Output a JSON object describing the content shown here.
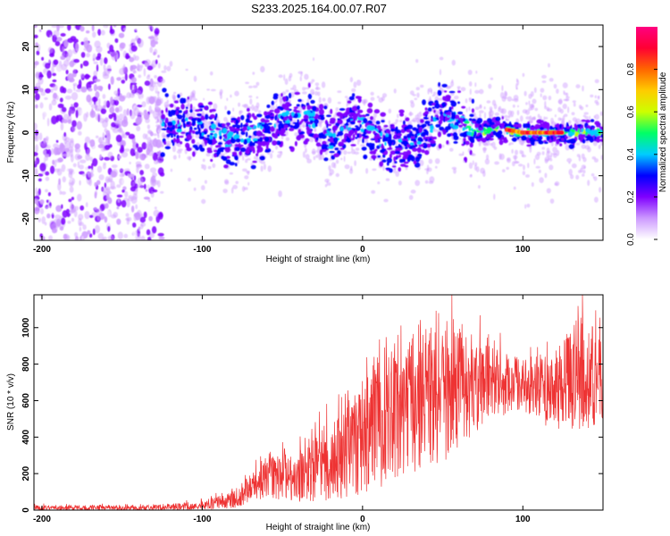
{
  "title": "S233.2025.164.00.07.R07",
  "chart_data": [
    {
      "type": "heatmap",
      "title": "",
      "xlabel": "Height of straight line (km)",
      "ylabel": "Frequency (Hz)",
      "xlim": [
        -205,
        150
      ],
      "ylim": [
        -25,
        25
      ],
      "xticks": [
        -200,
        -100,
        0,
        100
      ],
      "xtick_labels": [
        "-200",
        "-100",
        "0",
        "100"
      ],
      "yticks": [
        -20,
        -10,
        0,
        10,
        20
      ],
      "ytick_labels": [
        "-20",
        "-10",
        "0",
        "10",
        "20"
      ],
      "colorbar": {
        "label": "Normalized spectral amplitude",
        "range": [
          0,
          1
        ],
        "ticks": [
          0.0,
          0.2,
          0.4,
          0.6,
          0.8
        ],
        "tick_labels": [
          "0.0",
          "0.2",
          "0.4",
          "0.6",
          "0.8"
        ],
        "colormap": [
          "#ffffff",
          "#cc99ff",
          "#7f00ff",
          "#0000ff",
          "#00ccff",
          "#00ff66",
          "#ccff00",
          "#ffcc00",
          "#ff6600",
          "#ff0033",
          "#ff0080"
        ]
      },
      "features": {
        "noise_region_x": [
          -205,
          -125
        ],
        "signal_start_x": -125,
        "signal_center_track": [
          {
            "x": -125,
            "y": 3
          },
          {
            "x": -100,
            "y": 1
          },
          {
            "x": -80,
            "y": -2
          },
          {
            "x": -60,
            "y": 1
          },
          {
            "x": -45,
            "y": 4
          },
          {
            "x": -30,
            "y": 3
          },
          {
            "x": -20,
            "y": -2
          },
          {
            "x": -5,
            "y": 3
          },
          {
            "x": 10,
            "y": -1
          },
          {
            "x": 25,
            "y": -3
          },
          {
            "x": 40,
            "y": 0
          },
          {
            "x": 50,
            "y": 5
          },
          {
            "x": 60,
            "y": 2
          },
          {
            "x": 75,
            "y": 0
          },
          {
            "x": 85,
            "y": 1
          },
          {
            "x": 100,
            "y": 0
          },
          {
            "x": 120,
            "y": 0
          },
          {
            "x": 150,
            "y": 0
          }
        ],
        "peak_region_x": [
          90,
          125
        ],
        "peak_amplitude": 0.95
      }
    },
    {
      "type": "line",
      "title": "",
      "xlabel": "Height of straight line (km)",
      "ylabel": "SNR (10 * v/v)",
      "xlim": [
        -205,
        150
      ],
      "ylim": [
        0,
        1180
      ],
      "xticks": [
        -200,
        -100,
        0,
        100
      ],
      "xtick_labels": [
        "-200",
        "-100",
        "0",
        "100"
      ],
      "yticks": [
        0,
        200,
        400,
        600,
        800,
        1000
      ],
      "ytick_labels": [
        "0",
        "200",
        "400",
        "600",
        "800",
        "1000"
      ],
      "line_color": "#ee3333",
      "envelope": [
        {
          "x": -205,
          "mean": 12,
          "amp": 15
        },
        {
          "x": -130,
          "mean": 12,
          "amp": 15
        },
        {
          "x": -100,
          "mean": 25,
          "amp": 25
        },
        {
          "x": -80,
          "mean": 60,
          "amp": 50
        },
        {
          "x": -60,
          "mean": 180,
          "amp": 110
        },
        {
          "x": -40,
          "mean": 180,
          "amp": 140
        },
        {
          "x": -20,
          "mean": 260,
          "amp": 220
        },
        {
          "x": 0,
          "mean": 400,
          "amp": 320
        },
        {
          "x": 20,
          "mean": 540,
          "amp": 380
        },
        {
          "x": 50,
          "mean": 640,
          "amp": 380
        },
        {
          "x": 80,
          "mean": 700,
          "amp": 200
        },
        {
          "x": 100,
          "mean": 690,
          "amp": 150
        },
        {
          "x": 120,
          "mean": 650,
          "amp": 220
        },
        {
          "x": 135,
          "mean": 760,
          "amp": 330
        },
        {
          "x": 150,
          "mean": 700,
          "amp": 230
        }
      ]
    }
  ]
}
